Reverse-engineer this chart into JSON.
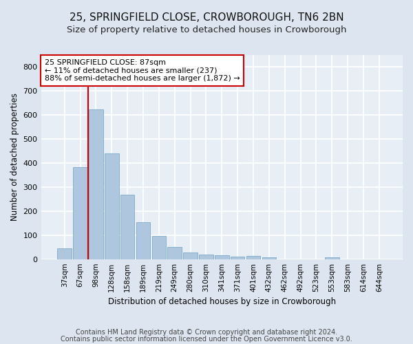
{
  "title": "25, SPRINGFIELD CLOSE, CROWBOROUGH, TN6 2BN",
  "subtitle": "Size of property relative to detached houses in Crowborough",
  "xlabel": "Distribution of detached houses by size in Crowborough",
  "ylabel": "Number of detached properties",
  "categories": [
    "37sqm",
    "67sqm",
    "98sqm",
    "128sqm",
    "158sqm",
    "189sqm",
    "219sqm",
    "249sqm",
    "280sqm",
    "310sqm",
    "341sqm",
    "371sqm",
    "401sqm",
    "432sqm",
    "462sqm",
    "492sqm",
    "523sqm",
    "553sqm",
    "583sqm",
    "614sqm",
    "644sqm"
  ],
  "values": [
    45,
    383,
    625,
    440,
    268,
    153,
    96,
    52,
    29,
    18,
    15,
    11,
    14,
    7,
    0,
    0,
    0,
    8,
    0,
    0,
    0
  ],
  "bar_color": "#aec6de",
  "bar_edge_color": "#7aaac8",
  "vline_x": 1.5,
  "vline_color": "#cc0000",
  "annotation_box_color": "#cc0000",
  "annotation_line1": "25 SPRINGFIELD CLOSE: 87sqm",
  "annotation_line2": "← 11% of detached houses are smaller (237)",
  "annotation_line3": "88% of semi-detached houses are larger (1,872) →",
  "ylim": [
    0,
    850
  ],
  "yticks": [
    0,
    100,
    200,
    300,
    400,
    500,
    600,
    700,
    800
  ],
  "footer_line1": "Contains HM Land Registry data © Crown copyright and database right 2024.",
  "footer_line2": "Contains public sector information licensed under the Open Government Licence v3.0.",
  "bg_color": "#dde6f0",
  "plot_bg_color": "#e8eef5",
  "grid_color": "#ffffff",
  "title_fontsize": 11,
  "subtitle_fontsize": 9.5,
  "axis_label_fontsize": 8.5,
  "tick_fontsize": 7.5,
  "footer_fontsize": 7,
  "annotation_fontsize": 8
}
